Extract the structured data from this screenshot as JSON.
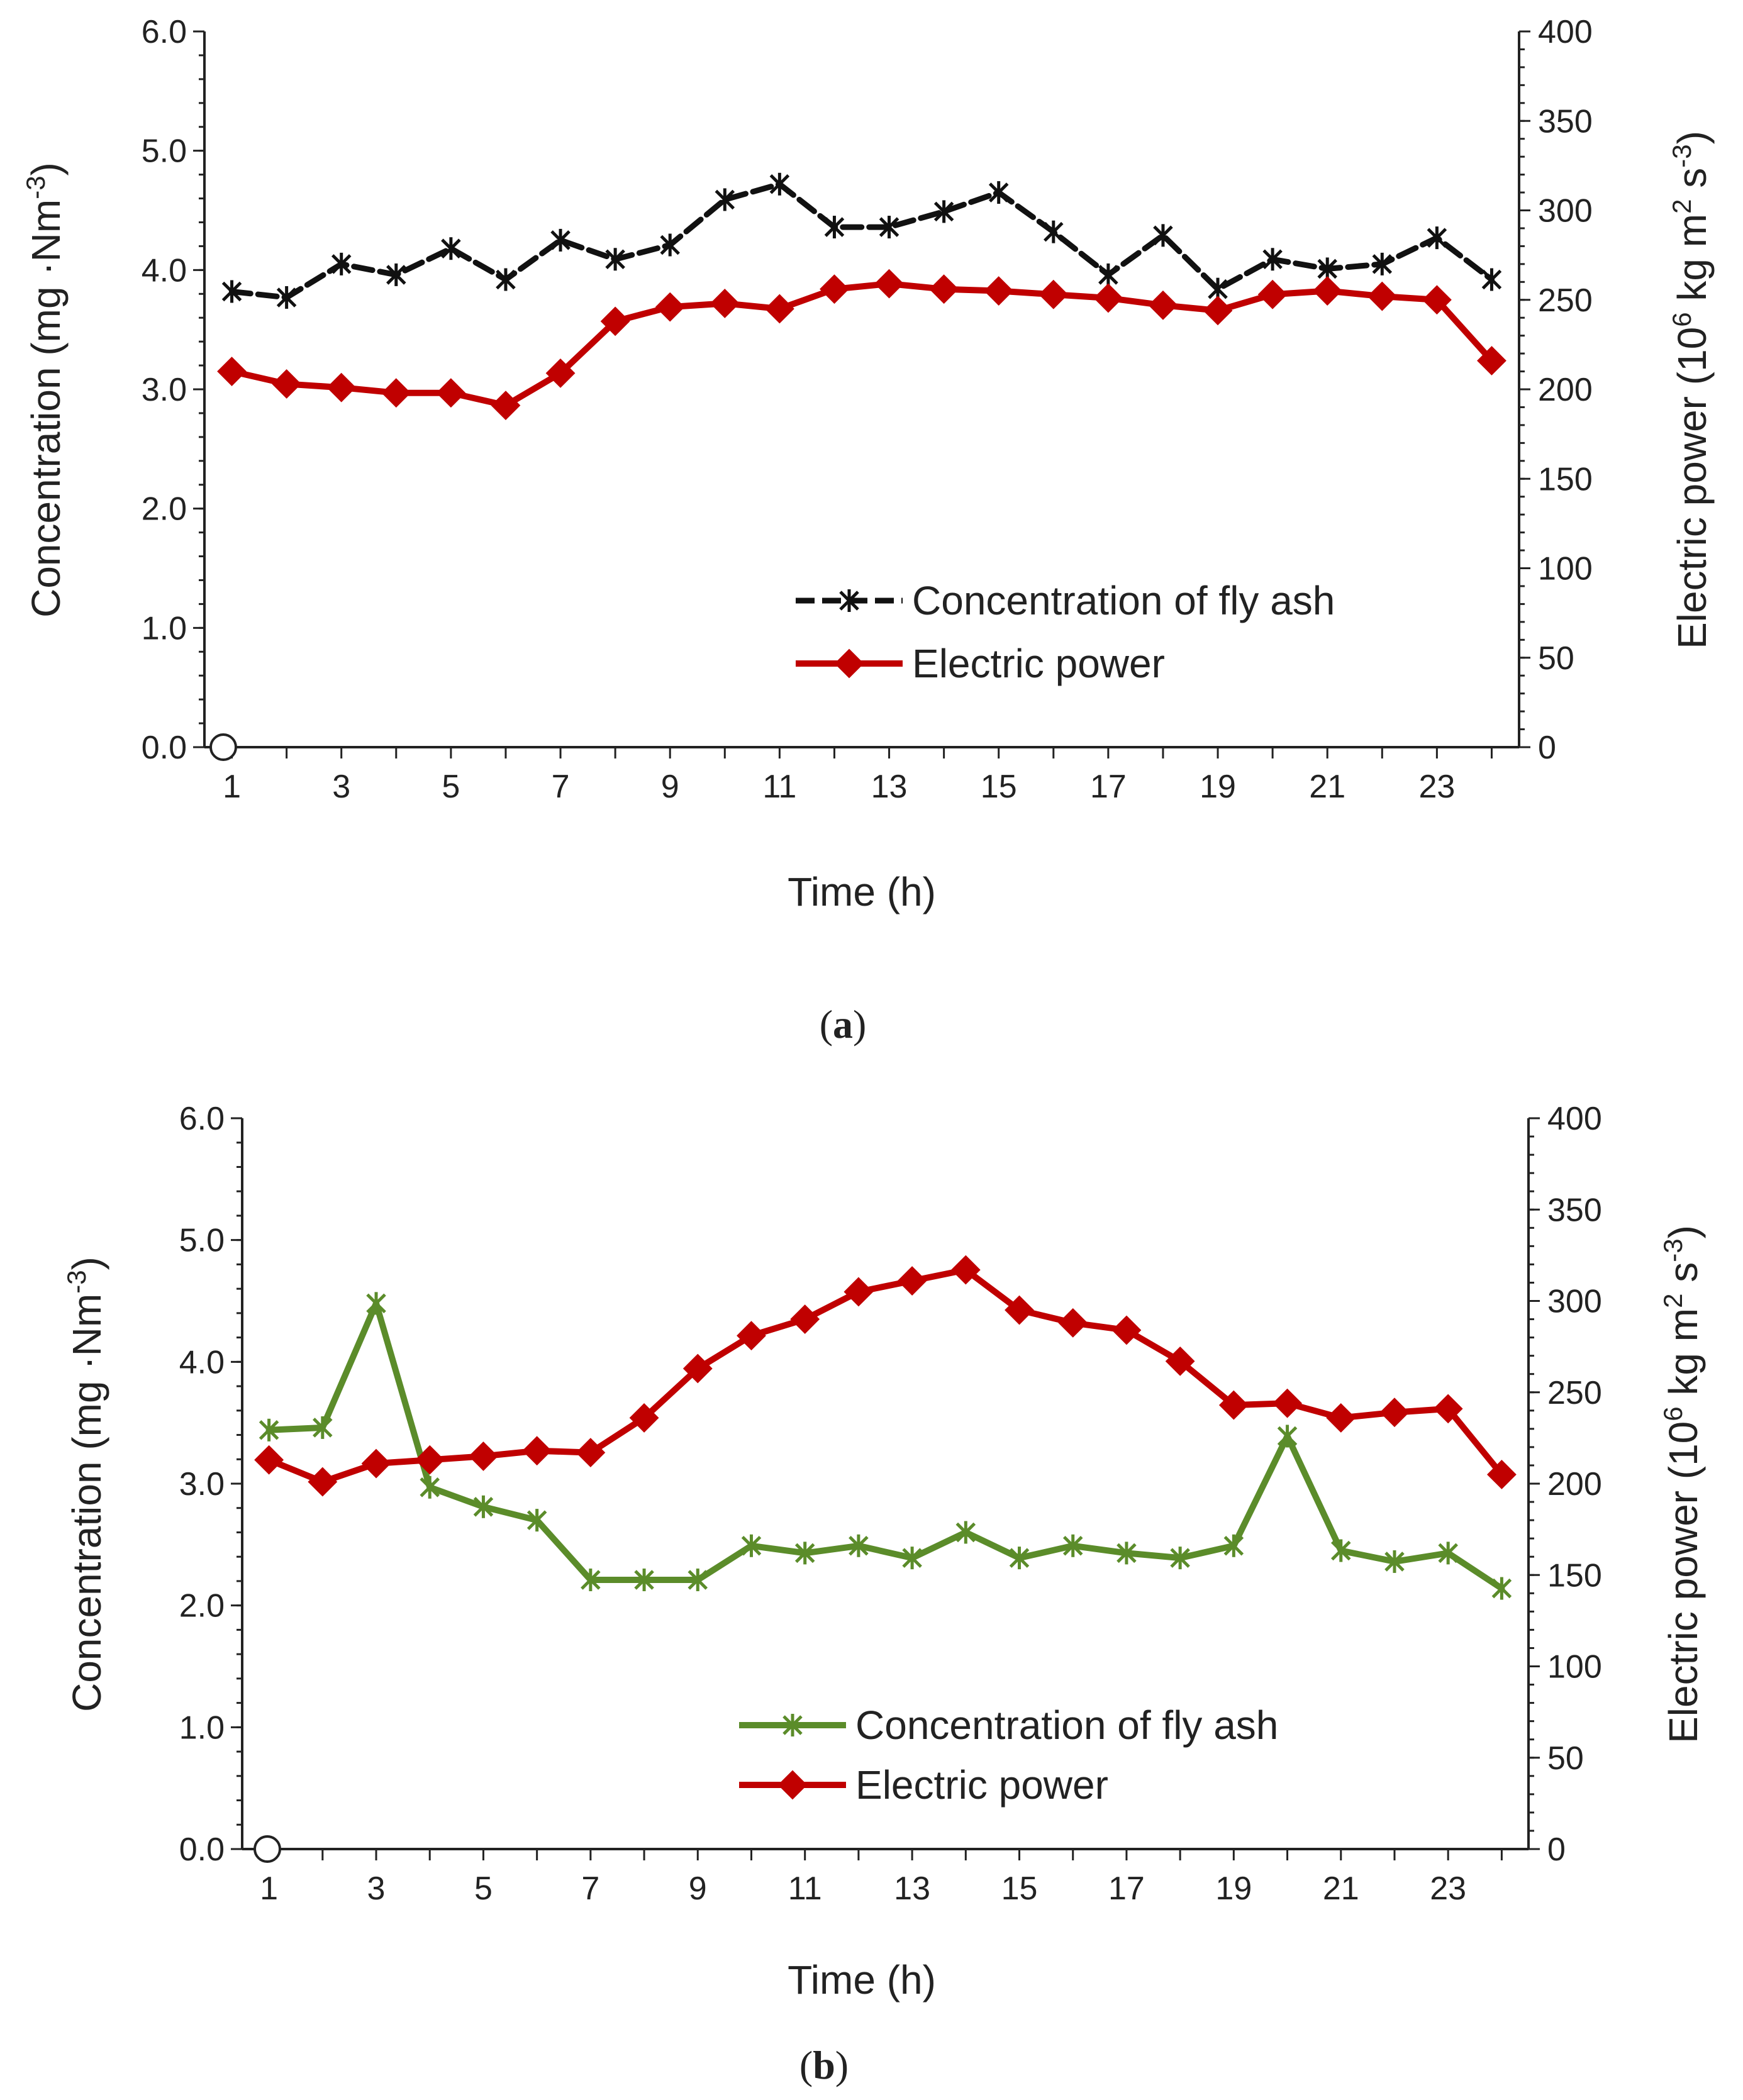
{
  "chart_data": [
    {
      "type": "line",
      "panel_label": "a",
      "x_label": "Time (h)",
      "y_left_label_main": "Concentration (mg ·Nm",
      "y_left_label_sup": "-3",
      "y_left_label_end": ")",
      "y_right_label_main": "Electric  power (10",
      "y_right_label_sup1": "6",
      "y_right_label_mid": " kg m",
      "y_right_label_sup2": "2",
      "y_right_label_mid2": " s",
      "y_right_label_sup3": "-3",
      "y_right_label_end": ")",
      "x_range": [
        0.5,
        24.5
      ],
      "x_ticks": [
        "1",
        "3",
        "5",
        "7",
        "9",
        "11",
        "13",
        "15",
        "17",
        "19",
        "21",
        "23"
      ],
      "y_left_range": [
        0,
        6
      ],
      "y_left_ticks": [
        "0.0",
        "1.0",
        "2.0",
        "3.0",
        "4.0",
        "5.0",
        "6.0"
      ],
      "y_right_range": [
        0,
        400
      ],
      "y_right_ticks": [
        "0",
        "50",
        "100",
        "150",
        "200",
        "250",
        "300",
        "350",
        "400"
      ],
      "legend_position": "lower-right",
      "origin_marker_label": "",
      "series": [
        {
          "name": "Concentration of fly ash",
          "axis": "left",
          "color": "#111111",
          "marker": "asterisk",
          "dash": true,
          "x": [
            1,
            2,
            3,
            4,
            5,
            6,
            7,
            8,
            9,
            10,
            11,
            12,
            13,
            14,
            15,
            16,
            17,
            18,
            19,
            20,
            21,
            22,
            23,
            24
          ],
          "values": [
            3.82,
            3.77,
            4.05,
            3.96,
            4.18,
            3.92,
            4.25,
            4.09,
            4.21,
            4.59,
            4.72,
            4.36,
            4.36,
            4.49,
            4.65,
            4.32,
            3.96,
            4.29,
            3.84,
            4.09,
            4.01,
            4.05,
            4.27,
            3.92
          ]
        },
        {
          "name": "Electric power",
          "axis": "right",
          "color": "#c00000",
          "marker": "diamond",
          "dash": false,
          "x": [
            1,
            2,
            3,
            4,
            5,
            6,
            7,
            8,
            9,
            10,
            11,
            12,
            13,
            14,
            15,
            16,
            17,
            18,
            19,
            20,
            21,
            22,
            23,
            24
          ],
          "values": [
            210,
            203,
            201,
            198,
            198,
            191,
            209,
            238,
            246,
            248,
            245,
            256,
            259,
            256,
            255,
            253,
            251,
            247,
            244,
            253,
            255,
            252,
            250,
            216
          ]
        }
      ]
    },
    {
      "type": "line",
      "panel_label": "b",
      "x_label": "Time (h)",
      "y_left_label_main": "Concentration (mg ·Nm",
      "y_left_label_sup": "-3",
      "y_left_label_end": ")",
      "y_right_label_main": "Electric  power (10",
      "y_right_label_sup1": "6",
      "y_right_label_mid": " kg m",
      "y_right_label_sup2": "2",
      "y_right_label_mid2": " s",
      "y_right_label_sup3": "-3",
      "y_right_label_end": ")",
      "x_range": [
        0.5,
        24.5
      ],
      "x_ticks": [
        "1",
        "3",
        "5",
        "7",
        "9",
        "11",
        "13",
        "15",
        "17",
        "19",
        "21",
        "23"
      ],
      "y_left_range": [
        0,
        6
      ],
      "y_left_ticks": [
        "0.0",
        "1.0",
        "2.0",
        "3.0",
        "4.0",
        "5.0",
        "6.0"
      ],
      "y_right_range": [
        0,
        400
      ],
      "y_right_ticks": [
        "0",
        "50",
        "100",
        "150",
        "200",
        "250",
        "300",
        "350",
        "400"
      ],
      "legend_position": "lower-center",
      "origin_marker_label": "",
      "series": [
        {
          "name": "Concentration of fly ash",
          "axis": "left",
          "color": "#5b8c2a",
          "marker": "asterisk",
          "dash": false,
          "x": [
            1,
            2,
            3,
            4,
            5,
            6,
            7,
            8,
            9,
            10,
            11,
            12,
            13,
            14,
            15,
            16,
            17,
            18,
            19,
            20,
            21,
            22,
            23,
            24
          ],
          "values": [
            3.44,
            3.46,
            4.48,
            2.97,
            2.81,
            2.7,
            2.21,
            2.21,
            2.21,
            2.49,
            2.43,
            2.49,
            2.39,
            2.6,
            2.39,
            2.49,
            2.43,
            2.39,
            2.49,
            3.39,
            2.45,
            2.36,
            2.43,
            2.14
          ]
        },
        {
          "name": "Electric power",
          "axis": "right",
          "color": "#c00000",
          "marker": "diamond",
          "dash": false,
          "x": [
            1,
            2,
            3,
            4,
            5,
            6,
            7,
            8,
            9,
            10,
            11,
            12,
            13,
            14,
            15,
            16,
            17,
            18,
            19,
            20,
            21,
            22,
            23,
            24
          ],
          "values": [
            213,
            201,
            211,
            213,
            215,
            218,
            217,
            236,
            263,
            281,
            290,
            305,
            311,
            317,
            295,
            288,
            284,
            267,
            243,
            244,
            236,
            239,
            241,
            205
          ]
        }
      ]
    }
  ]
}
